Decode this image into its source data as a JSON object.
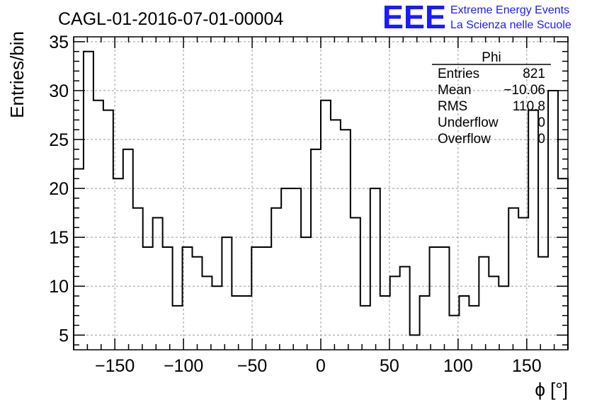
{
  "chart_data": {
    "type": "histogram",
    "title": "CAGL-01-2016-07-01-00004",
    "xlabel": "ϕ [°]",
    "ylabel": "Entries/bin",
    "xlim": [
      -180,
      180
    ],
    "ylim": [
      3.5,
      35.5
    ],
    "grid": true,
    "bin_width": 7.2,
    "x_ticks": [
      -150,
      -100,
      -50,
      0,
      50,
      100,
      150
    ],
    "x_tick_labels": [
      "−150",
      "−100",
      "−50",
      "0",
      "50",
      "100",
      "150"
    ],
    "y_ticks": [
      5,
      10,
      15,
      20,
      25,
      30,
      35
    ],
    "y_tick_labels": [
      "5",
      "10",
      "15",
      "20",
      "25",
      "30",
      "35"
    ],
    "values": [
      22,
      34,
      29,
      28,
      21,
      24,
      18,
      14,
      17,
      14,
      8,
      14,
      13,
      11,
      10,
      15,
      9,
      9,
      14,
      14,
      18,
      20,
      20,
      15,
      24,
      29,
      27,
      26,
      17,
      8,
      20,
      9,
      11,
      12,
      5,
      9,
      14,
      14,
      7,
      9,
      8,
      13,
      11,
      10,
      18,
      17,
      28,
      13,
      30,
      21
    ],
    "stats_box": {
      "title": "Phi",
      "rows": [
        {
          "label": "Entries",
          "value": "821"
        },
        {
          "label": "Mean",
          "value": "−10.06"
        },
        {
          "label": "RMS",
          "value": "110.8"
        },
        {
          "label": "Underflow",
          "value": "0"
        },
        {
          "label": "Overflow",
          "value": "0"
        }
      ]
    },
    "colors": {
      "line": "#000000",
      "grid": "#9a9a9a",
      "logo": "#1a1aff"
    }
  },
  "logo": {
    "mark": "EEE",
    "line1": "Extreme Energy Events",
    "line2": "La Scienza nelle Scuole"
  }
}
